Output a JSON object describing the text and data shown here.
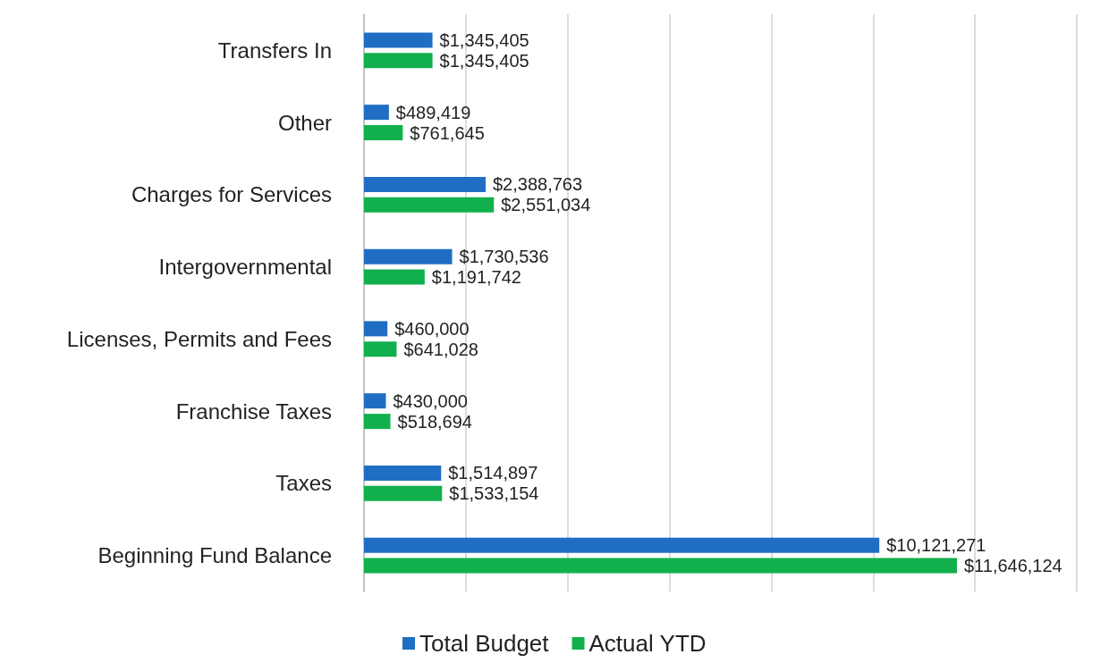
{
  "chart_data": {
    "type": "bar",
    "orientation": "horizontal",
    "categories": [
      "Transfers In",
      "Other",
      "Charges for Services",
      "Intergovernmental",
      "Licenses, Permits and Fees",
      "Franchise Taxes",
      "Taxes",
      "Beginning Fund Balance"
    ],
    "series": [
      {
        "name": "Total Budget",
        "color": "#1f6ec4",
        "values": [
          1345405,
          489419,
          2388763,
          1730536,
          460000,
          430000,
          1514897,
          10121271
        ],
        "value_labels": [
          "$1,345,405",
          "$489,419",
          "$2,388,763",
          "$1,730,536",
          "$460,000",
          "$430,000",
          "$1,514,897",
          "$10,121,271"
        ]
      },
      {
        "name": "Actual YTD",
        "color": "#12b04c",
        "values": [
          1345405,
          761645,
          2551034,
          1191742,
          641028,
          518694,
          1533154,
          11646124
        ],
        "value_labels": [
          "$1,345,405",
          "$761,645",
          "$2,551,034",
          "$1,191,742",
          "$641,028",
          "$518,694",
          "$1,533,154",
          "$11,646,124"
        ]
      }
    ],
    "xlim": [
      0,
      14000000
    ],
    "xticks": [
      {
        "value": 0,
        "label": null
      },
      {
        "value": 2000000,
        "label": null
      },
      {
        "value": 4000000,
        "label": null
      },
      {
        "value": 6000000,
        "label": null
      },
      {
        "value": 8000000,
        "label": null
      },
      {
        "value": 10000000,
        "label": null
      },
      {
        "value": 12000000,
        "label": null
      },
      {
        "value": 14000000,
        "label": null
      }
    ],
    "tick_labels": "y",
    "grid": "x",
    "legend": "bottom"
  }
}
